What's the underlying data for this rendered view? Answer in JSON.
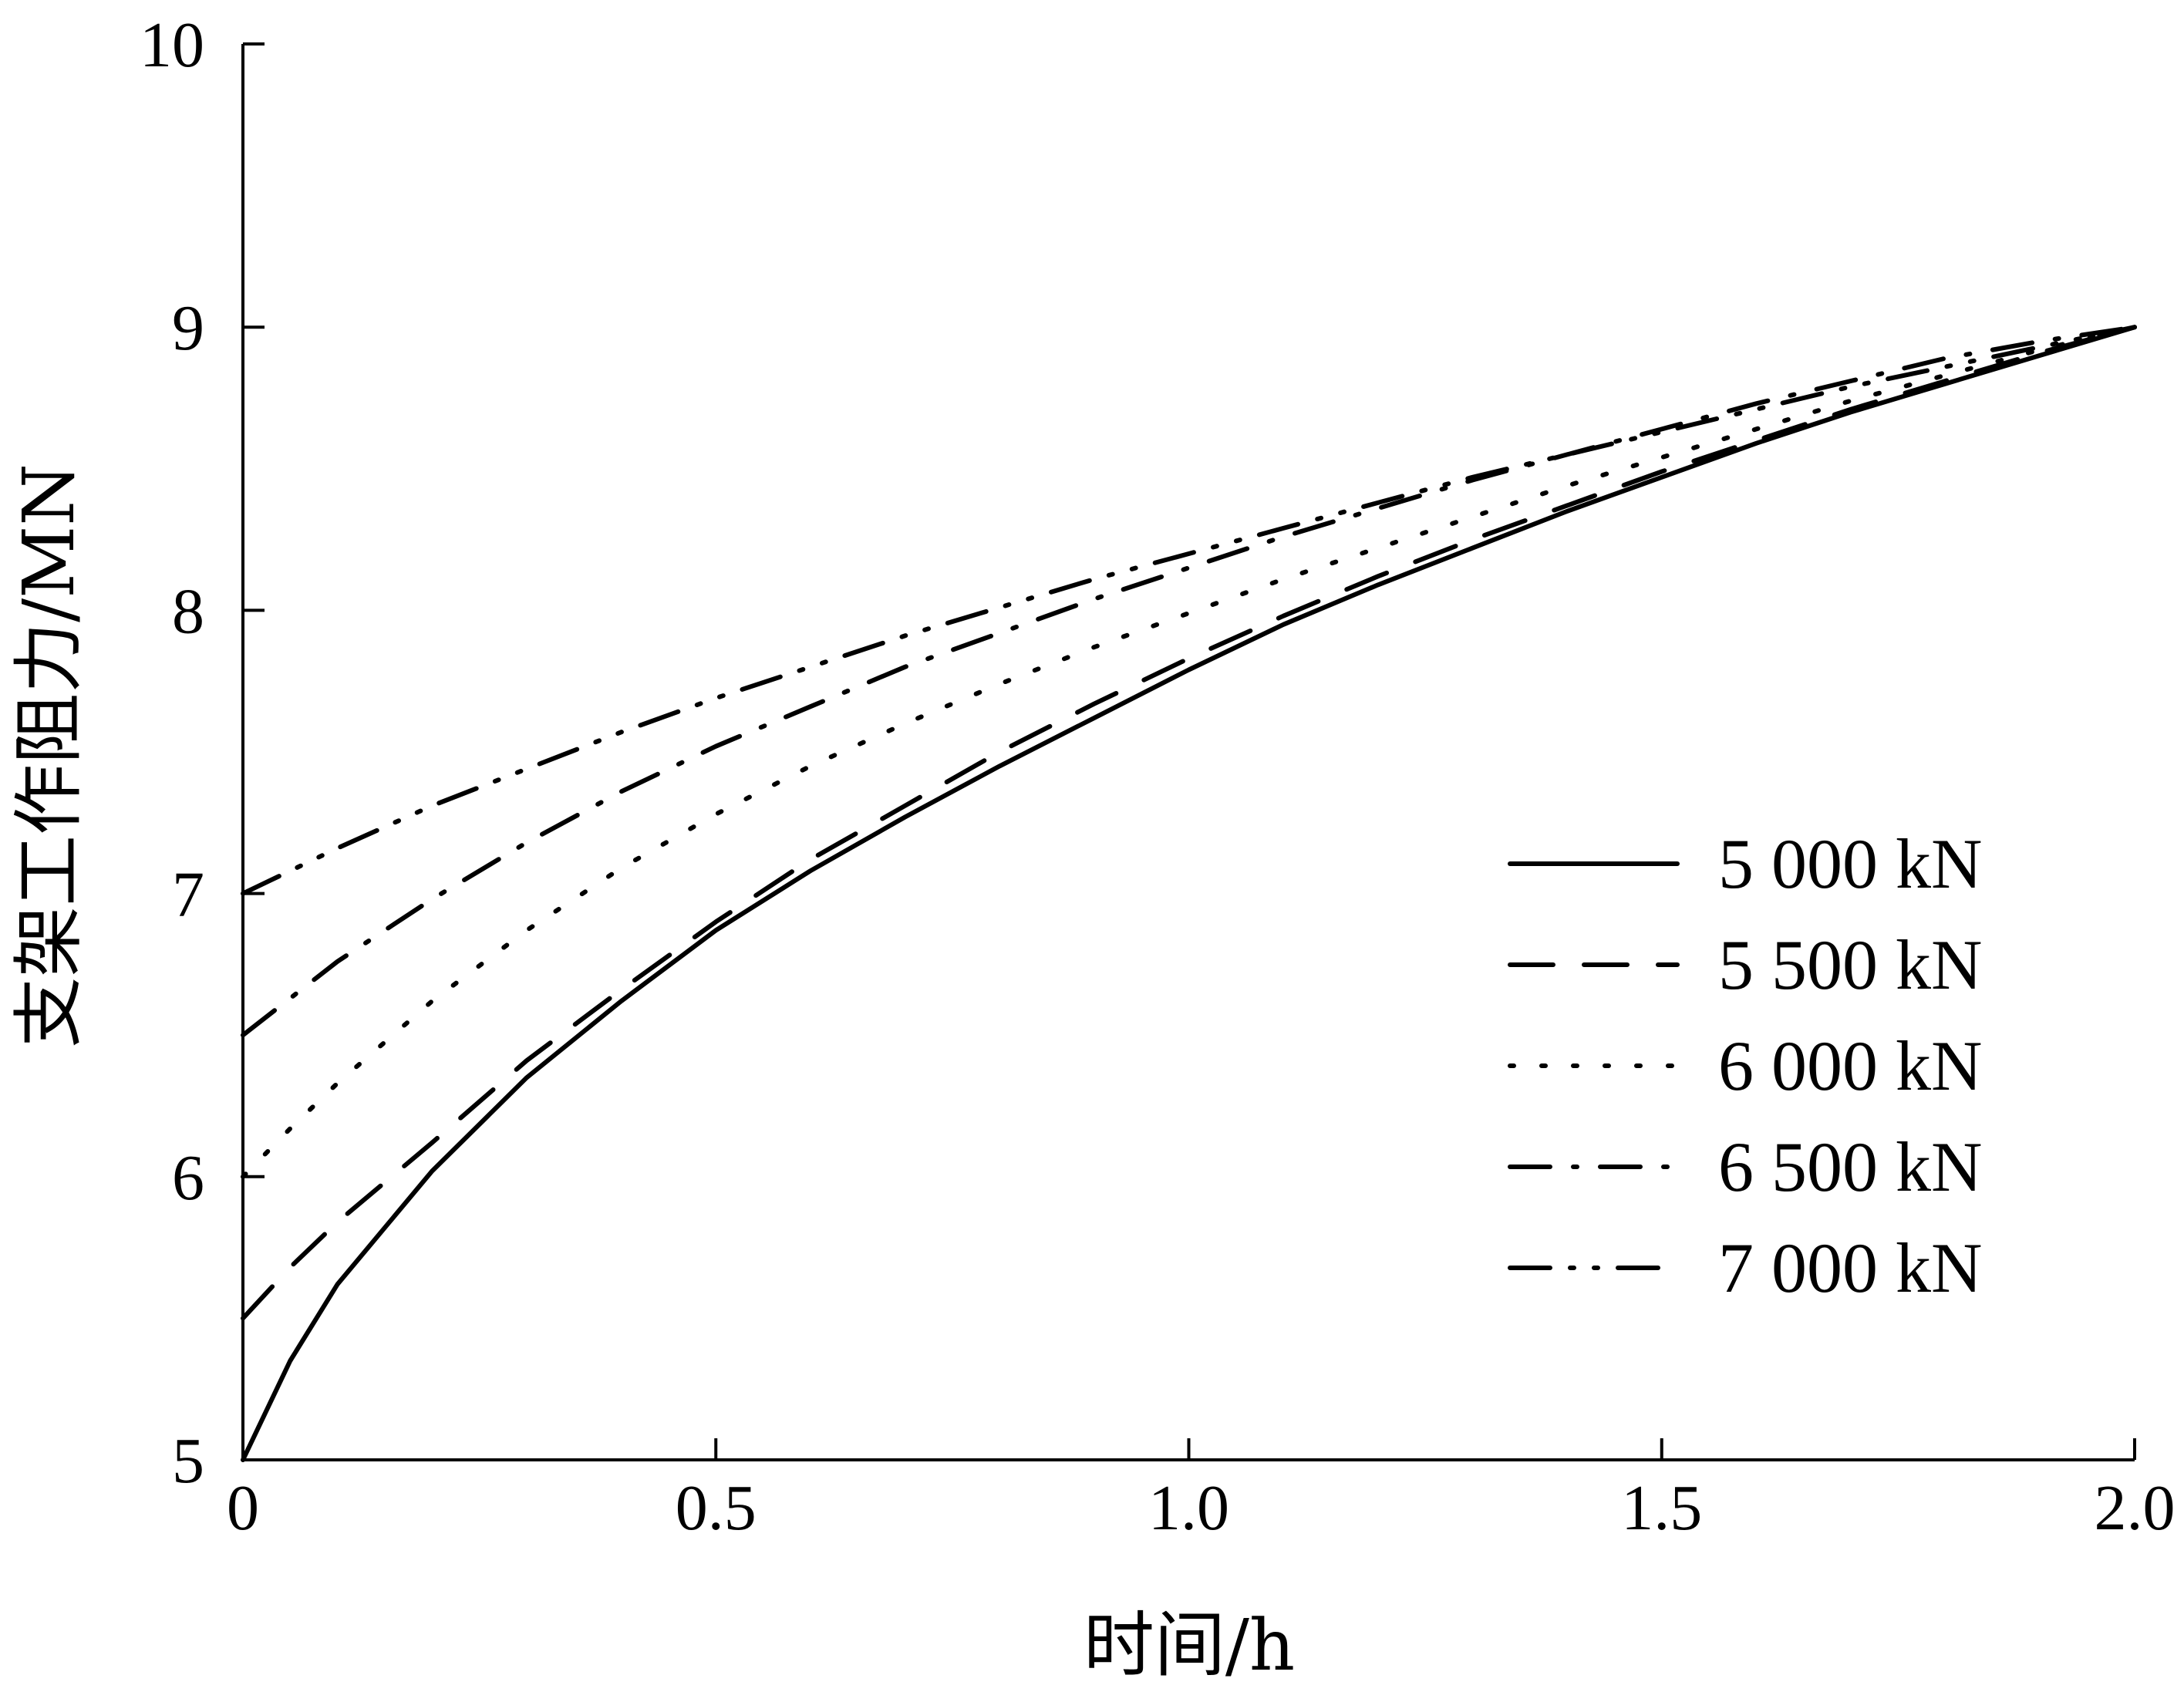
{
  "chart_data": {
    "type": "line",
    "xlabel": "时间/h",
    "ylabel": "支架工作阻力/MN",
    "xlim": [
      0,
      2.0
    ],
    "ylim": [
      5,
      10
    ],
    "xticks": [
      "0",
      "0.5",
      "1.0",
      "1.5",
      "2.0"
    ],
    "yticks": [
      "5",
      "6",
      "7",
      "8",
      "9",
      "10"
    ],
    "legend_position": "right",
    "grid": false,
    "series": [
      {
        "name": "5 000 kN",
        "style": "solid",
        "x": [
          0,
          0.05,
          0.1,
          0.2,
          0.3,
          0.4,
          0.5,
          0.6,
          0.7,
          0.8,
          0.9,
          1.0,
          1.1,
          1.2,
          1.3,
          1.4,
          1.5,
          1.6,
          1.7,
          1.8,
          1.9,
          2.0
        ],
        "y": [
          5.0,
          5.35,
          5.62,
          6.02,
          6.35,
          6.62,
          6.87,
          7.08,
          7.27,
          7.45,
          7.62,
          7.79,
          7.95,
          8.09,
          8.22,
          8.35,
          8.47,
          8.59,
          8.7,
          8.8,
          8.9,
          9.0
        ]
      },
      {
        "name": "5 500 kN",
        "style": "dashed",
        "x": [
          0,
          0.05,
          0.1,
          0.2,
          0.3,
          0.4,
          0.5,
          0.6,
          0.7,
          0.8,
          0.9,
          1.0,
          1.1,
          1.2,
          1.3,
          1.4,
          1.5,
          1.6,
          1.7,
          1.8,
          1.9,
          2.0
        ],
        "y": [
          5.5,
          5.68,
          5.84,
          6.12,
          6.41,
          6.66,
          6.9,
          7.12,
          7.31,
          7.5,
          7.67,
          7.83,
          7.98,
          8.12,
          8.25,
          8.37,
          8.49,
          8.6,
          8.71,
          8.81,
          8.91,
          9.0
        ]
      },
      {
        "name": "6 000 kN",
        "style": "dotted",
        "x": [
          0,
          0.05,
          0.1,
          0.2,
          0.3,
          0.4,
          0.5,
          0.6,
          0.7,
          0.8,
          0.9,
          1.0,
          1.1,
          1.2,
          1.3,
          1.4,
          1.5,
          1.6,
          1.7,
          1.8,
          1.9,
          2.0
        ],
        "y": [
          6.0,
          6.17,
          6.33,
          6.62,
          6.87,
          7.09,
          7.28,
          7.45,
          7.6,
          7.74,
          7.87,
          7.99,
          8.11,
          8.22,
          8.33,
          8.44,
          8.54,
          8.64,
          8.74,
          8.83,
          8.92,
          9.0
        ]
      },
      {
        "name": "6 500 kN",
        "style": "dash-dot",
        "x": [
          0,
          0.05,
          0.1,
          0.2,
          0.3,
          0.4,
          0.5,
          0.6,
          0.7,
          0.8,
          0.9,
          1.0,
          1.1,
          1.2,
          1.3,
          1.4,
          1.5,
          1.6,
          1.7,
          1.8,
          1.9,
          2.0
        ],
        "y": [
          6.5,
          6.63,
          6.76,
          6.98,
          7.18,
          7.36,
          7.52,
          7.66,
          7.8,
          7.92,
          8.04,
          8.15,
          8.26,
          8.36,
          8.46,
          8.55,
          8.64,
          8.73,
          8.81,
          8.89,
          8.95,
          9.0
        ]
      },
      {
        "name": "7 000 kN",
        "style": "dash-dot-dot",
        "x": [
          0,
          0.05,
          0.1,
          0.2,
          0.3,
          0.4,
          0.5,
          0.6,
          0.7,
          0.8,
          0.9,
          1.0,
          1.1,
          1.2,
          1.3,
          1.4,
          1.5,
          1.6,
          1.7,
          1.8,
          1.9,
          2.0
        ],
        "y": [
          7.0,
          7.08,
          7.16,
          7.31,
          7.44,
          7.57,
          7.69,
          7.8,
          7.91,
          8.01,
          8.11,
          8.2,
          8.29,
          8.38,
          8.47,
          8.55,
          8.63,
          8.71,
          8.79,
          8.86,
          8.93,
          9.0
        ]
      }
    ]
  }
}
